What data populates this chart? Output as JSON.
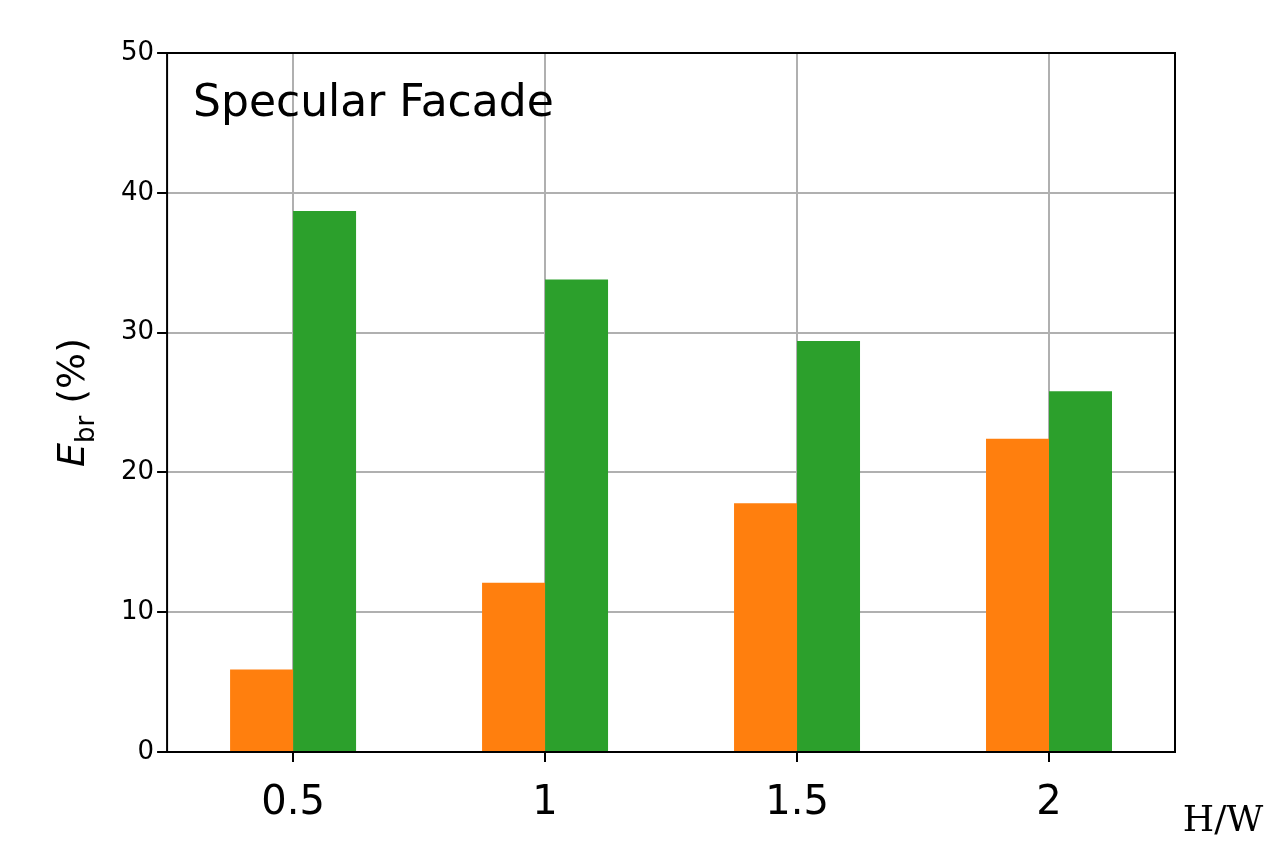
{
  "chart_data": {
    "type": "bar",
    "categories": [
      "0.5",
      "1",
      "1.5",
      "2"
    ],
    "series": [
      {
        "color": "#ff7f0e",
        "values": [
          5.9,
          12.1,
          17.8,
          22.4
        ]
      },
      {
        "color": "#2ca02c",
        "values": [
          38.7,
          33.8,
          29.4,
          25.8
        ]
      }
    ],
    "ylabel": "E$_{br}$ (%)",
    "xlabel": "H/W",
    "annotations": [
      "Specular Facade"
    ],
    "ylim": [
      0,
      50
    ],
    "yticks": [
      0,
      10,
      20,
      30,
      40,
      50
    ],
    "grid": true,
    "legend": false
  }
}
